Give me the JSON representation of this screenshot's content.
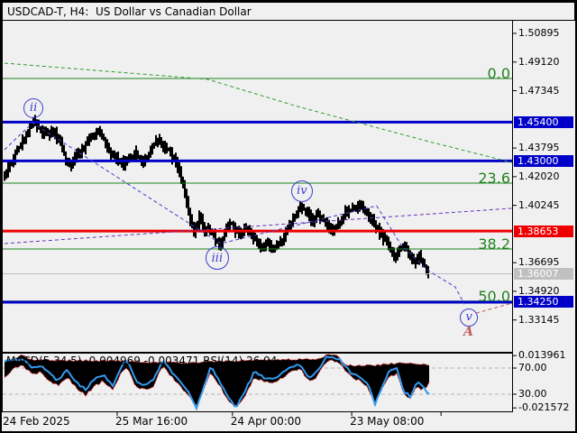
{
  "title_bar": {
    "title": "USDCAD-T, H4:  US Dollar vs Canadian Dollar"
  },
  "chart_data": {
    "type": "candlestick",
    "symbol": "USDCAD-T",
    "timeframe": "H4",
    "description": "US Dollar vs Canadian Dollar",
    "colors": {
      "blue_level": "#0000c8",
      "red_level": "#ee0000",
      "gray_level": "#c0c0c0",
      "gray_line": "#bdbdbd",
      "fib_green": "#1e821e",
      "green_dashed": "#2e9b2e",
      "purple_dashed": "#6633bb",
      "wave_blue": "#3d3dcf",
      "dark_red": "#c05c5c",
      "candle": "#000000",
      "macd_fill": "#000000",
      "macd_signal_red": "#ee2222",
      "rsi_blue": "#3399ee",
      "grid_dashed": "#b5b5b5"
    },
    "y_axis": {
      "ticks": [
        "1.50895",
        "1.49120",
        "1.47345",
        "1.43795",
        "1.42020",
        "1.40245",
        "1.36695",
        "1.34920",
        "1.33145"
      ]
    },
    "horizontal_levels": [
      {
        "text": "1.45400",
        "price": 1.454,
        "kind": "blue"
      },
      {
        "text": "1.43000",
        "price": 1.43,
        "kind": "blue"
      },
      {
        "text": "1.38653",
        "price": 1.38653,
        "kind": "red"
      },
      {
        "text": "1.36007",
        "price": 1.36007,
        "kind": "gray"
      },
      {
        "text": "1.34250",
        "price": 1.3425,
        "kind": "blue"
      }
    ],
    "fibonacci": [
      {
        "label": "0.0",
        "price": 1.481
      },
      {
        "label": "23.6",
        "price": 1.4162
      },
      {
        "label": "38.2",
        "price": 1.3754
      },
      {
        "label": "50.0",
        "price": 1.3432
      }
    ],
    "trendlines": [
      {
        "name": "green-dashed-channel",
        "color_key": "green_dashed",
        "points": [
          [
            0,
            1.4905
          ],
          [
            0.4,
            1.4805
          ],
          [
            0.577,
            1.4637
          ],
          [
            0.844,
            1.4413
          ],
          [
            1,
            1.429
          ]
        ]
      },
      {
        "name": "purple-dashed-trendline",
        "color_key": "purple_dashed",
        "points": [
          [
            0,
            1.3788
          ],
          [
            1,
            1.4006
          ]
        ]
      },
      {
        "name": "blue-wave-projection",
        "color_key": "wave_blue",
        "points": [
          [
            0,
            1.4369
          ],
          [
            0.055,
            1.4536
          ],
          [
            0.426,
            1.3788
          ],
          [
            0.733,
            1.4022
          ],
          [
            0.782,
            1.3776
          ],
          [
            0.835,
            1.362
          ],
          [
            0.888,
            1.3519
          ],
          [
            0.906,
            1.3413
          ]
        ]
      },
      {
        "name": "darkred-projection",
        "color_key": "dark_red",
        "points": [
          [
            0.929,
            1.3357
          ],
          [
            1,
            1.3419
          ]
        ]
      }
    ],
    "wave_labels": [
      {
        "text": "ii",
        "t": 0.057,
        "price": 1.4626,
        "circle": 22,
        "color_key": "wave_blue"
      },
      {
        "text": "iii",
        "t": 0.419,
        "price": 1.3698,
        "circle": 26,
        "color_key": "wave_blue"
      },
      {
        "text": "iv",
        "t": 0.586,
        "price": 1.4112,
        "circle": 24,
        "color_key": "wave_blue"
      },
      {
        "text": "v",
        "t": 0.915,
        "price": 1.333,
        "circle": 20,
        "color_key": "wave_blue"
      },
      {
        "text": "A",
        "t": 0.915,
        "price": 1.3235,
        "circle": 0,
        "color_key": "dark_red"
      }
    ],
    "price_path_anchors": [
      [
        0.0,
        1.4216
      ],
      [
        0.009,
        1.4273
      ],
      [
        0.018,
        1.4312
      ],
      [
        0.03,
        1.4385
      ],
      [
        0.044,
        1.447
      ],
      [
        0.059,
        1.456
      ],
      [
        0.071,
        1.4481
      ],
      [
        0.083,
        1.4459
      ],
      [
        0.094,
        1.4493
      ],
      [
        0.107,
        1.4425
      ],
      [
        0.119,
        1.4329
      ],
      [
        0.13,
        1.4256
      ],
      [
        0.142,
        1.4329
      ],
      [
        0.155,
        1.4368
      ],
      [
        0.169,
        1.4442
      ],
      [
        0.183,
        1.4487
      ],
      [
        0.195,
        1.4425
      ],
      [
        0.208,
        1.4357
      ],
      [
        0.222,
        1.4312
      ],
      [
        0.233,
        1.4278
      ],
      [
        0.245,
        1.4323
      ],
      [
        0.258,
        1.4346
      ],
      [
        0.27,
        1.429
      ],
      [
        0.281,
        1.4312
      ],
      [
        0.293,
        1.4396
      ],
      [
        0.304,
        1.4425
      ],
      [
        0.314,
        1.4391
      ],
      [
        0.325,
        1.4357
      ],
      [
        0.334,
        1.43
      ],
      [
        0.343,
        1.4244
      ],
      [
        0.352,
        1.416
      ],
      [
        0.359,
        1.4047
      ],
      [
        0.366,
        1.3934
      ],
      [
        0.373,
        1.3861
      ],
      [
        0.38,
        1.3906
      ],
      [
        0.385,
        1.3962
      ],
      [
        0.393,
        1.3861
      ],
      [
        0.4,
        1.3895
      ],
      [
        0.409,
        1.385
      ],
      [
        0.417,
        1.3805
      ],
      [
        0.426,
        1.3782
      ],
      [
        0.435,
        1.3861
      ],
      [
        0.444,
        1.3918
      ],
      [
        0.453,
        1.3878
      ],
      [
        0.464,
        1.3839
      ],
      [
        0.474,
        1.3878
      ],
      [
        0.485,
        1.3839
      ],
      [
        0.496,
        1.3805
      ],
      [
        0.506,
        1.3771
      ],
      [
        0.517,
        1.3793
      ],
      [
        0.528,
        1.3748
      ],
      [
        0.538,
        1.3782
      ],
      [
        0.549,
        1.3822
      ],
      [
        0.554,
        1.385
      ],
      [
        0.563,
        1.3918
      ],
      [
        0.574,
        1.3974
      ],
      [
        0.584,
        1.4019
      ],
      [
        0.591,
        1.4007
      ],
      [
        0.6,
        1.3962
      ],
      [
        0.609,
        1.3934
      ],
      [
        0.618,
        1.3974
      ],
      [
        0.627,
        1.3934
      ],
      [
        0.636,
        1.3895
      ],
      [
        0.645,
        1.3861
      ],
      [
        0.654,
        1.3895
      ],
      [
        0.662,
        1.3934
      ],
      [
        0.671,
        1.3974
      ],
      [
        0.68,
        1.4002
      ],
      [
        0.689,
        1.3985
      ],
      [
        0.698,
        1.4019
      ],
      [
        0.707,
        1.4007
      ],
      [
        0.716,
        1.3974
      ],
      [
        0.725,
        1.3934
      ],
      [
        0.733,
        1.3895
      ],
      [
        0.742,
        1.385
      ],
      [
        0.751,
        1.3805
      ],
      [
        0.76,
        1.3748
      ],
      [
        0.769,
        1.3709
      ],
      [
        0.778,
        1.3748
      ],
      [
        0.787,
        1.3782
      ],
      [
        0.794,
        1.3748
      ],
      [
        0.801,
        1.3692
      ],
      [
        0.808,
        1.3664
      ],
      [
        0.815,
        1.3703
      ],
      [
        0.822,
        1.3692
      ],
      [
        0.828,
        1.3647
      ],
      [
        0.835,
        1.3613
      ]
    ],
    "candles_end_t": 0.835,
    "x_axis": {
      "labels": [
        {
          "text": "24 Feb 2025",
          "t": 0.0
        },
        {
          "text": "25 Mar 16:00",
          "t": 0.222
        },
        {
          "text": "24 Apr 00:00",
          "t": 0.449
        },
        {
          "text": "23 May 08:00",
          "t": 0.684
        }
      ],
      "tick_ts": [
        0.222,
        0.449,
        0.684,
        0.86
      ]
    },
    "macd": {
      "header": "MACD(5,34,5) -0.004969 -0.003471 RSI(14) 26.94",
      "macd_value": -0.004969,
      "signal_value": -0.003471,
      "rsi_value": 26.94,
      "scale_labels": [
        {
          "text": "0.013961",
          "scale": "macd",
          "v": 0.013961
        },
        {
          "text": "70.00",
          "scale": "rsi",
          "v": 70
        },
        {
          "text": "30.00",
          "scale": "rsi",
          "v": 30
        },
        {
          "text": "-0.021572",
          "scale": "macd",
          "v": -0.021572
        }
      ],
      "rsi_guides": [
        70,
        30
      ],
      "series_t": [
        0,
        0.018,
        0.036,
        0.053,
        0.071,
        0.089,
        0.107,
        0.124,
        0.142,
        0.16,
        0.178,
        0.195,
        0.213,
        0.231,
        0.243,
        0.258,
        0.275,
        0.293,
        0.311,
        0.329,
        0.346,
        0.364,
        0.378,
        0.393,
        0.407,
        0.421,
        0.439,
        0.456,
        0.474,
        0.492,
        0.51,
        0.528,
        0.545,
        0.563,
        0.581,
        0.599,
        0.616,
        0.631,
        0.645,
        0.659,
        0.673,
        0.687,
        0.702,
        0.716,
        0.73,
        0.744,
        0.758,
        0.773,
        0.787,
        0.801,
        0.812,
        0.822,
        0.833,
        0.84
      ],
      "hist_lower": [
        -0.0006,
        0.0055,
        0.008,
        0.0012,
        0.0031,
        -0.0031,
        -0.0067,
        -0.0006,
        -0.008,
        -0.0129,
        -0.0067,
        -0.0031,
        -0.0092,
        0.0031,
        0.0055,
        -0.0067,
        -0.0092,
        -0.0067,
        0.0074,
        -0.0006,
        -0.0067,
        -0.0141,
        -0.0202,
        -0.0092,
        0.0031,
        -0.0049,
        -0.0153,
        -0.0214,
        -0.0129,
        -0.0006,
        -0.0031,
        -0.0049,
        -0.0018,
        0.0031,
        0.0055,
        -0.0031,
        -0.0006,
        0.0092,
        0.0116,
        0.0092,
        0.0031,
        -0.0018,
        -0.0031,
        -0.008,
        -0.0172,
        -0.0092,
        -0.0006,
        0.0018,
        -0.0129,
        -0.0153,
        -0.0067,
        -0.0092,
        -0.0067,
        -0.0018
      ],
      "hist_upper": [
        [
          0,
          0.0104
        ],
        [
          0.02,
          0.0116
        ],
        [
          0.035,
          0.0147
        ],
        [
          0.05,
          0.011
        ],
        [
          0.2,
          0.0104
        ],
        [
          0.35,
          0.009
        ],
        [
          0.45,
          0.0104
        ],
        [
          0.62,
          0.0116
        ],
        [
          0.637,
          0.0153
        ],
        [
          0.655,
          0.0147
        ],
        [
          0.67,
          0.0074
        ],
        [
          0.73,
          0.0074
        ],
        [
          0.78,
          0.009
        ],
        [
          0.84,
          0.0074
        ]
      ],
      "rsi_series": [
        79.7,
        82.4,
        83.8,
        70,
        74.1,
        60.3,
        50.7,
        67.2,
        47.9,
        36.9,
        53.4,
        60.3,
        42.4,
        74.1,
        81,
        50.7,
        42.4,
        50.7,
        82.4,
        64.5,
        50.7,
        31.4,
        9.3,
        42.4,
        72.8,
        53.4,
        28.6,
        10,
        34.1,
        64.5,
        56.2,
        53.4,
        60.3,
        70,
        75.5,
        56.2,
        64.5,
        85.2,
        87.9,
        83.8,
        70,
        60.3,
        56.2,
        45.2,
        14.8,
        42.4,
        64.5,
        70,
        34.1,
        25.9,
        47.9,
        42.4,
        34.1,
        26.9
      ],
      "series_end_t": 0.84
    }
  }
}
